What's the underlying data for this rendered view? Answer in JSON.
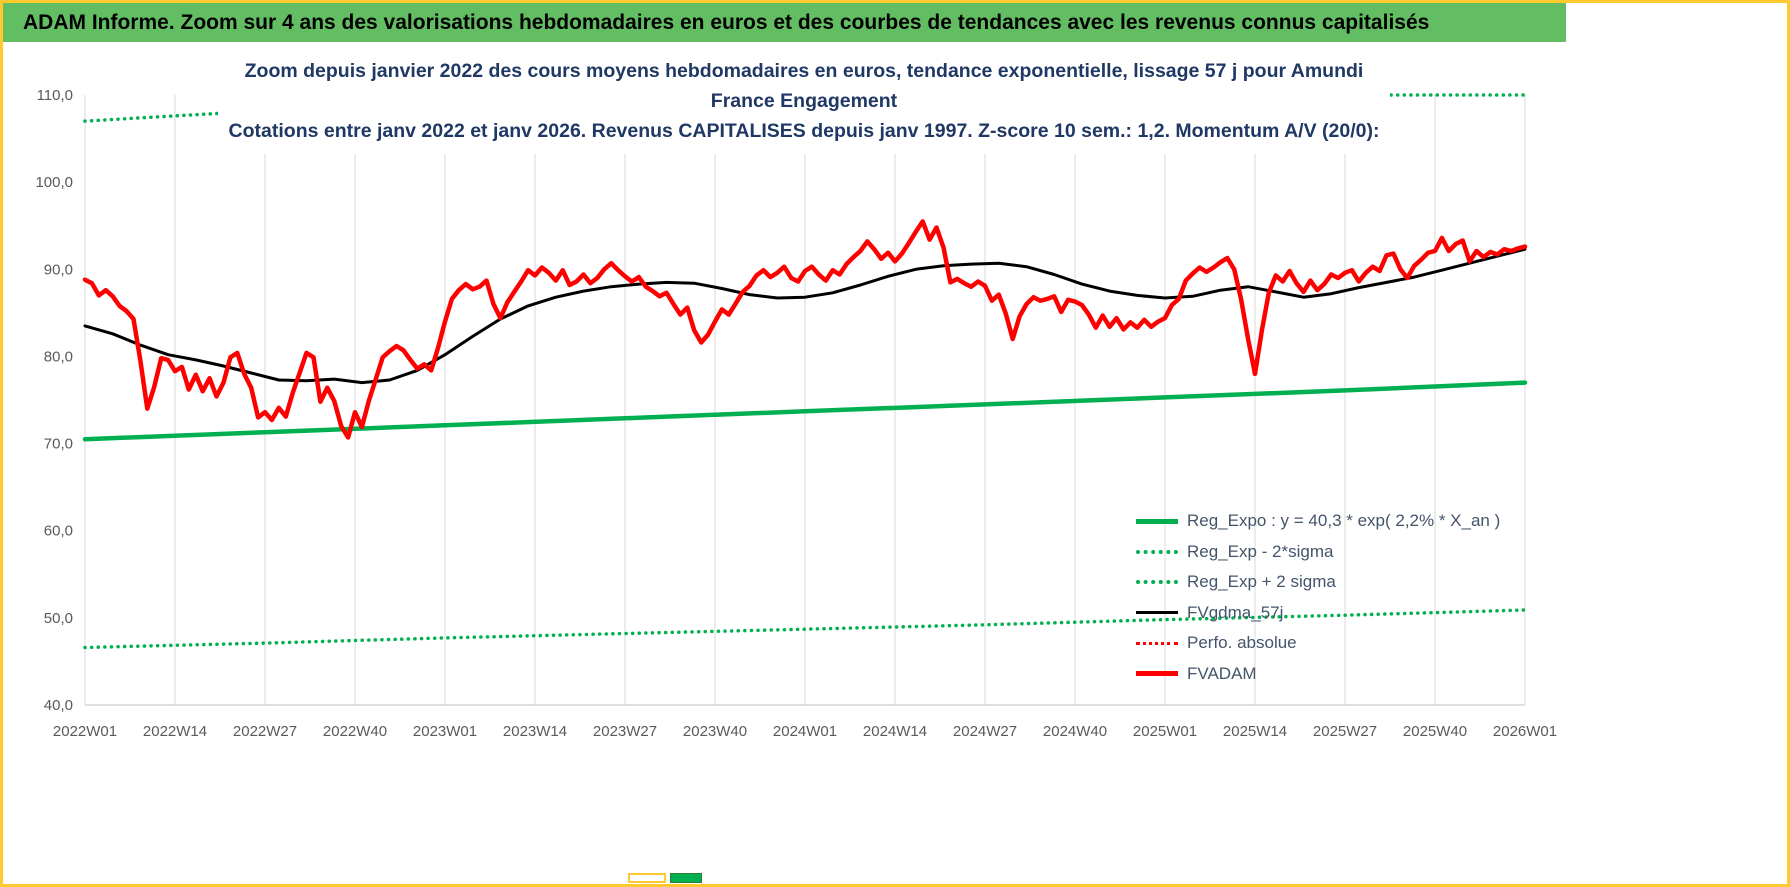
{
  "banner": {
    "title": "ADAM Informe. Zoom sur 4 ans des valorisations hebdomadaires en euros et des courbes de tendances avec les revenus connus capitalisés"
  },
  "chart_data": {
    "type": "line",
    "title": "Zoom depuis janvier 2022 des cours moyens hebdomadaires en euros, tendance exponentielle, lissage 57 j pour Amundi France Engagement",
    "subtitle": "Cotations entre janv 2022 et janv 2026. Revenus CAPITALISES depuis janv 1997. Z-score 10 sem.: 1,2. Momentum A/V (20/0):",
    "legend_position": "inside-right",
    "grid": "vertical-only",
    "x_axis": {
      "unit": "week",
      "weeks_per_tick": 13,
      "total_weeks": 208,
      "tick_labels": [
        "2022W01",
        "2022W14",
        "2022W27",
        "2022W40",
        "2023W01",
        "2023W14",
        "2023W27",
        "2023W40",
        "2024W01",
        "2024W14",
        "2024W27",
        "2024W40",
        "2025W01",
        "2025W14",
        "2025W27",
        "2025W40",
        "2026W01"
      ]
    },
    "y_axis": {
      "min": 40,
      "max": 110,
      "ticks": [
        {
          "v": 40,
          "label": "40,0"
        },
        {
          "v": 50,
          "label": "50,0"
        },
        {
          "v": 60,
          "label": "60,0"
        },
        {
          "v": 70,
          "label": "70,0"
        },
        {
          "v": 80,
          "label": "80,0"
        },
        {
          "v": 90,
          "label": "90,0"
        },
        {
          "v": 100,
          "label": "100,0"
        },
        {
          "v": 110,
          "label": "110,0"
        }
      ]
    },
    "series": [
      {
        "name": "Reg_Expo : y = 40,3 * exp( 2,2% *  X_an )",
        "key": "reg_expo",
        "color": "#00B050",
        "style": "solid",
        "width": 4.5,
        "points": [
          [
            0,
            70.5
          ],
          [
            26,
            71.3
          ],
          [
            52,
            72.1
          ],
          [
            78,
            72.9
          ],
          [
            104,
            73.7
          ],
          [
            130,
            74.5
          ],
          [
            156,
            75.3
          ],
          [
            182,
            76.1
          ],
          [
            208,
            77.0
          ]
        ]
      },
      {
        "name": "Reg_Exp - 2*sigma",
        "key": "reg_exp_minus_2sigma",
        "color": "#00B050",
        "style": "dotted",
        "width": 3.5,
        "points": [
          [
            0,
            46.6
          ],
          [
            26,
            47.1
          ],
          [
            52,
            47.7
          ],
          [
            78,
            48.2
          ],
          [
            104,
            48.7
          ],
          [
            130,
            49.2
          ],
          [
            156,
            49.8
          ],
          [
            182,
            50.3
          ],
          [
            208,
            50.9
          ]
        ]
      },
      {
        "name": "Reg_Exp + 2 sigma",
        "key": "reg_exp_plus_2sigma",
        "color": "#00B050",
        "style": "dotted",
        "width": 3.5,
        "points": [
          [
            0,
            107.0
          ],
          [
            13,
            107.6
          ],
          [
            26,
            108.2
          ],
          [
            39,
            108.8
          ],
          [
            52,
            109.4
          ],
          [
            65,
            110.0
          ],
          [
            208,
            110.0
          ]
        ]
      },
      {
        "name": "FVgdma_57j",
        "key": "fvgdma_57j",
        "color": "#000000",
        "style": "solid",
        "width": 3,
        "points": [
          [
            0,
            83.5
          ],
          [
            4,
            82.6
          ],
          [
            8,
            81.3
          ],
          [
            12,
            80.2
          ],
          [
            16,
            79.6
          ],
          [
            20,
            78.9
          ],
          [
            24,
            78.1
          ],
          [
            28,
            77.3
          ],
          [
            32,
            77.2
          ],
          [
            36,
            77.4
          ],
          [
            40,
            77.0
          ],
          [
            44,
            77.3
          ],
          [
            48,
            78.4
          ],
          [
            52,
            80.2
          ],
          [
            56,
            82.3
          ],
          [
            60,
            84.3
          ],
          [
            64,
            85.8
          ],
          [
            68,
            86.8
          ],
          [
            72,
            87.5
          ],
          [
            76,
            88.0
          ],
          [
            80,
            88.3
          ],
          [
            84,
            88.5
          ],
          [
            88,
            88.4
          ],
          [
            92,
            87.8
          ],
          [
            96,
            87.1
          ],
          [
            100,
            86.7
          ],
          [
            104,
            86.8
          ],
          [
            108,
            87.3
          ],
          [
            112,
            88.2
          ],
          [
            116,
            89.2
          ],
          [
            120,
            90.0
          ],
          [
            124,
            90.4
          ],
          [
            128,
            90.6
          ],
          [
            132,
            90.7
          ],
          [
            136,
            90.3
          ],
          [
            140,
            89.4
          ],
          [
            144,
            88.3
          ],
          [
            148,
            87.5
          ],
          [
            152,
            87.0
          ],
          [
            156,
            86.7
          ],
          [
            160,
            86.9
          ],
          [
            164,
            87.6
          ],
          [
            168,
            88.0
          ],
          [
            172,
            87.4
          ],
          [
            176,
            86.8
          ],
          [
            180,
            87.2
          ],
          [
            184,
            87.9
          ],
          [
            188,
            88.5
          ],
          [
            192,
            89.1
          ],
          [
            196,
            89.9
          ],
          [
            200,
            90.7
          ],
          [
            204,
            91.5
          ],
          [
            208,
            92.3
          ]
        ]
      },
      {
        "name": "Perfo. absolue",
        "key": "perfo_absolue",
        "color": "#FF0000",
        "style": "dotted",
        "width": 3,
        "overlaps": "fvadam"
      },
      {
        "name": "FVADAM",
        "key": "fvadam",
        "color": "#FF0000",
        "style": "solid",
        "width": 4.5,
        "values": [
          88.8,
          88.4,
          87.0,
          87.6,
          86.9,
          85.8,
          85.2,
          84.3,
          79.5,
          74.0,
          76.5,
          79.8,
          79.6,
          78.3,
          78.8,
          76.2,
          77.9,
          76.0,
          77.5,
          75.4,
          77.0,
          79.9,
          80.4,
          78.0,
          76.4,
          73.0,
          73.6,
          72.7,
          74.1,
          73.1,
          75.8,
          78.1,
          80.4,
          79.9,
          74.8,
          76.4,
          74.9,
          72.0,
          70.7,
          73.6,
          71.9,
          74.9,
          77.4,
          79.9,
          80.6,
          81.2,
          80.7,
          79.6,
          78.6,
          79.1,
          78.4,
          81.0,
          84.0,
          86.6,
          87.6,
          88.3,
          87.7,
          88.0,
          88.7,
          86.0,
          84.4,
          86.2,
          87.4,
          88.6,
          89.9,
          89.3,
          90.2,
          89.6,
          88.7,
          89.9,
          88.2,
          88.6,
          89.4,
          88.4,
          89.0,
          90.0,
          90.7,
          89.9,
          89.2,
          88.6,
          89.1,
          88.0,
          87.5,
          86.9,
          87.3,
          86.0,
          84.8,
          85.6,
          83.0,
          81.6,
          82.5,
          84.0,
          85.4,
          84.8,
          86.1,
          87.4,
          88.1,
          89.3,
          89.9,
          89.1,
          89.6,
          90.3,
          89.0,
          88.6,
          89.8,
          90.3,
          89.4,
          88.7,
          89.9,
          89.4,
          90.6,
          91.4,
          92.1,
          93.2,
          92.3,
          91.2,
          91.9,
          90.9,
          91.8,
          93.0,
          94.3,
          95.5,
          93.4,
          94.8,
          92.5,
          88.5,
          88.9,
          88.4,
          88.0,
          88.6,
          88.1,
          86.4,
          87.1,
          84.9,
          82.0,
          84.6,
          86.0,
          86.8,
          86.4,
          86.6,
          86.9,
          85.1,
          86.5,
          86.3,
          85.9,
          84.8,
          83.3,
          84.7,
          83.4,
          84.4,
          83.1,
          83.9,
          83.3,
          84.2,
          83.4,
          84.0,
          84.4,
          85.9,
          86.6,
          88.7,
          89.5,
          90.2,
          89.7,
          90.2,
          90.8,
          91.3,
          90.0,
          86.5,
          82.0,
          78.0,
          83.0,
          87.3,
          89.3,
          88.6,
          89.8,
          88.4,
          87.4,
          88.7,
          87.6,
          88.3,
          89.4,
          89.0,
          89.6,
          89.9,
          88.6,
          89.6,
          90.3,
          89.8,
          91.6,
          91.8,
          90.0,
          89.0,
          90.4,
          91.1,
          91.9,
          92.1,
          93.6,
          92.1,
          92.9,
          93.3,
          90.9,
          92.1,
          91.4,
          92.0,
          91.7,
          92.3,
          92.1,
          92.4,
          92.6
        ]
      }
    ],
    "colors": {
      "banner_green": "#63BE63",
      "frame_gold": "#FFC930",
      "series_green": "#00B050",
      "series_red": "#FF0000",
      "series_black": "#000000",
      "title_navy": "#1F3864",
      "gridline_gray": "#D9D9D9"
    }
  }
}
